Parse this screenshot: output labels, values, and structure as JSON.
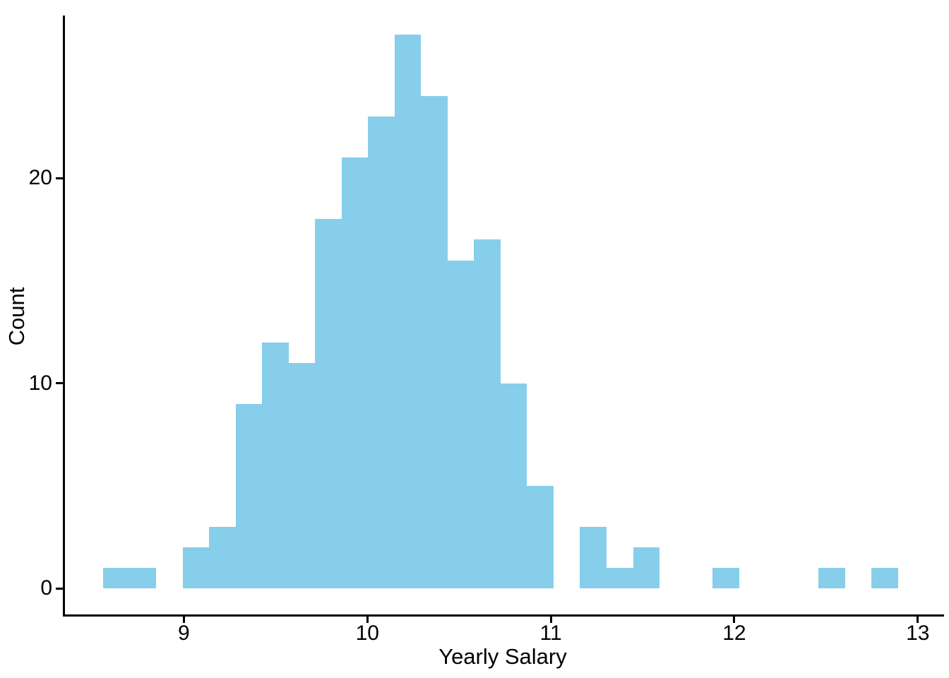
{
  "chart_data": {
    "type": "bar",
    "subtype": "histogram",
    "title": "",
    "xlabel": "Yearly Salary",
    "ylabel": "Count",
    "bar_color": "#87CEEB",
    "axis_color": "#000000",
    "background_color": "#FFFFFF",
    "grid": false,
    "legend_position": "none",
    "bins": {
      "start": 8.56,
      "width": 0.1444,
      "counts": [
        1,
        1,
        0,
        2,
        3,
        9,
        12,
        11,
        18,
        21,
        23,
        27,
        24,
        16,
        17,
        10,
        5,
        0,
        3,
        1,
        2,
        0,
        0,
        1,
        0,
        0,
        0,
        1,
        0,
        1
      ]
    },
    "x_ticks": [
      {
        "value": 9,
        "label": "9"
      },
      {
        "value": 10,
        "label": "10"
      },
      {
        "value": 11,
        "label": "11"
      },
      {
        "value": 12,
        "label": "12"
      },
      {
        "value": 13,
        "label": "13"
      }
    ],
    "y_ticks": [
      {
        "value": 0,
        "label": "0"
      },
      {
        "value": 10,
        "label": "10"
      },
      {
        "value": 20,
        "label": "20"
      }
    ],
    "xlim": [
      8.34,
      13.14
    ],
    "ylim": [
      0,
      27.9
    ]
  }
}
